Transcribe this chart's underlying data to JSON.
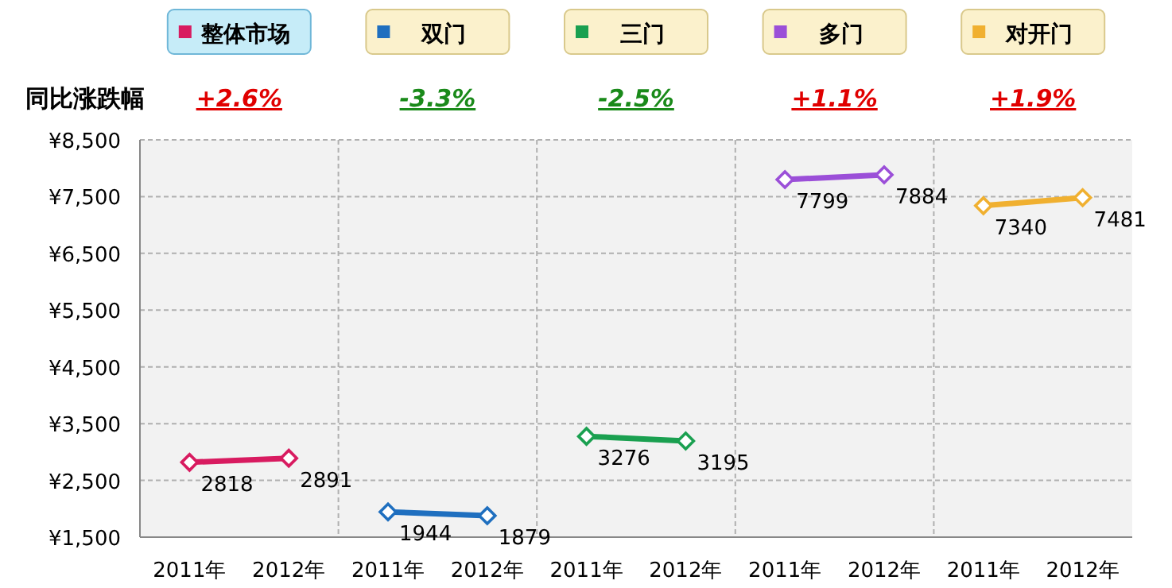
{
  "chart_data": {
    "type": "line",
    "categories": [
      "2011年",
      "2012年",
      "2011年",
      "2012年",
      "2011年",
      "2012年",
      "2011年",
      "2012年",
      "2011年",
      "2012年"
    ],
    "series": [
      {
        "name": "整体市场",
        "color": "#d81b60",
        "values": [
          2818,
          2891,
          null,
          null,
          null,
          null,
          null,
          null,
          null,
          null
        ]
      },
      {
        "name": "双门",
        "color": "#1f6fbf",
        "values": [
          null,
          null,
          1944,
          1879,
          null,
          null,
          null,
          null,
          null,
          null
        ]
      },
      {
        "name": "三门",
        "color": "#1aa050",
        "values": [
          null,
          null,
          null,
          null,
          3276,
          3195,
          null,
          null,
          null,
          null
        ]
      },
      {
        "name": "多门",
        "color": "#9b4fd8",
        "values": [
          null,
          null,
          null,
          null,
          null,
          null,
          7799,
          7884,
          null,
          null
        ]
      },
      {
        "name": "对开门",
        "color": "#f0b030",
        "values": [
          null,
          null,
          null,
          null,
          null,
          null,
          null,
          null,
          7340,
          7481
        ]
      }
    ],
    "ylim": [
      1500,
      8500
    ],
    "yticks": [
      {
        "value": 1500,
        "label": "¥1,500"
      },
      {
        "value": 2500,
        "label": "¥2,500"
      },
      {
        "value": 3500,
        "label": "¥3,500"
      },
      {
        "value": 4500,
        "label": "¥4,500"
      },
      {
        "value": 5500,
        "label": "¥5,500"
      },
      {
        "value": 6500,
        "label": "¥6,500"
      },
      {
        "value": 7500,
        "label": "¥7,500"
      },
      {
        "value": 8500,
        "label": "¥8,500"
      }
    ],
    "annotations": [
      "同比涨跌幅",
      "+2.6%",
      "-3.3%",
      "-2.5%",
      "+1.1%",
      "+1.9%"
    ],
    "grid": true,
    "legend": "top",
    "marker": "diamond",
    "line_style": "solid",
    "data_labels": true
  }
}
